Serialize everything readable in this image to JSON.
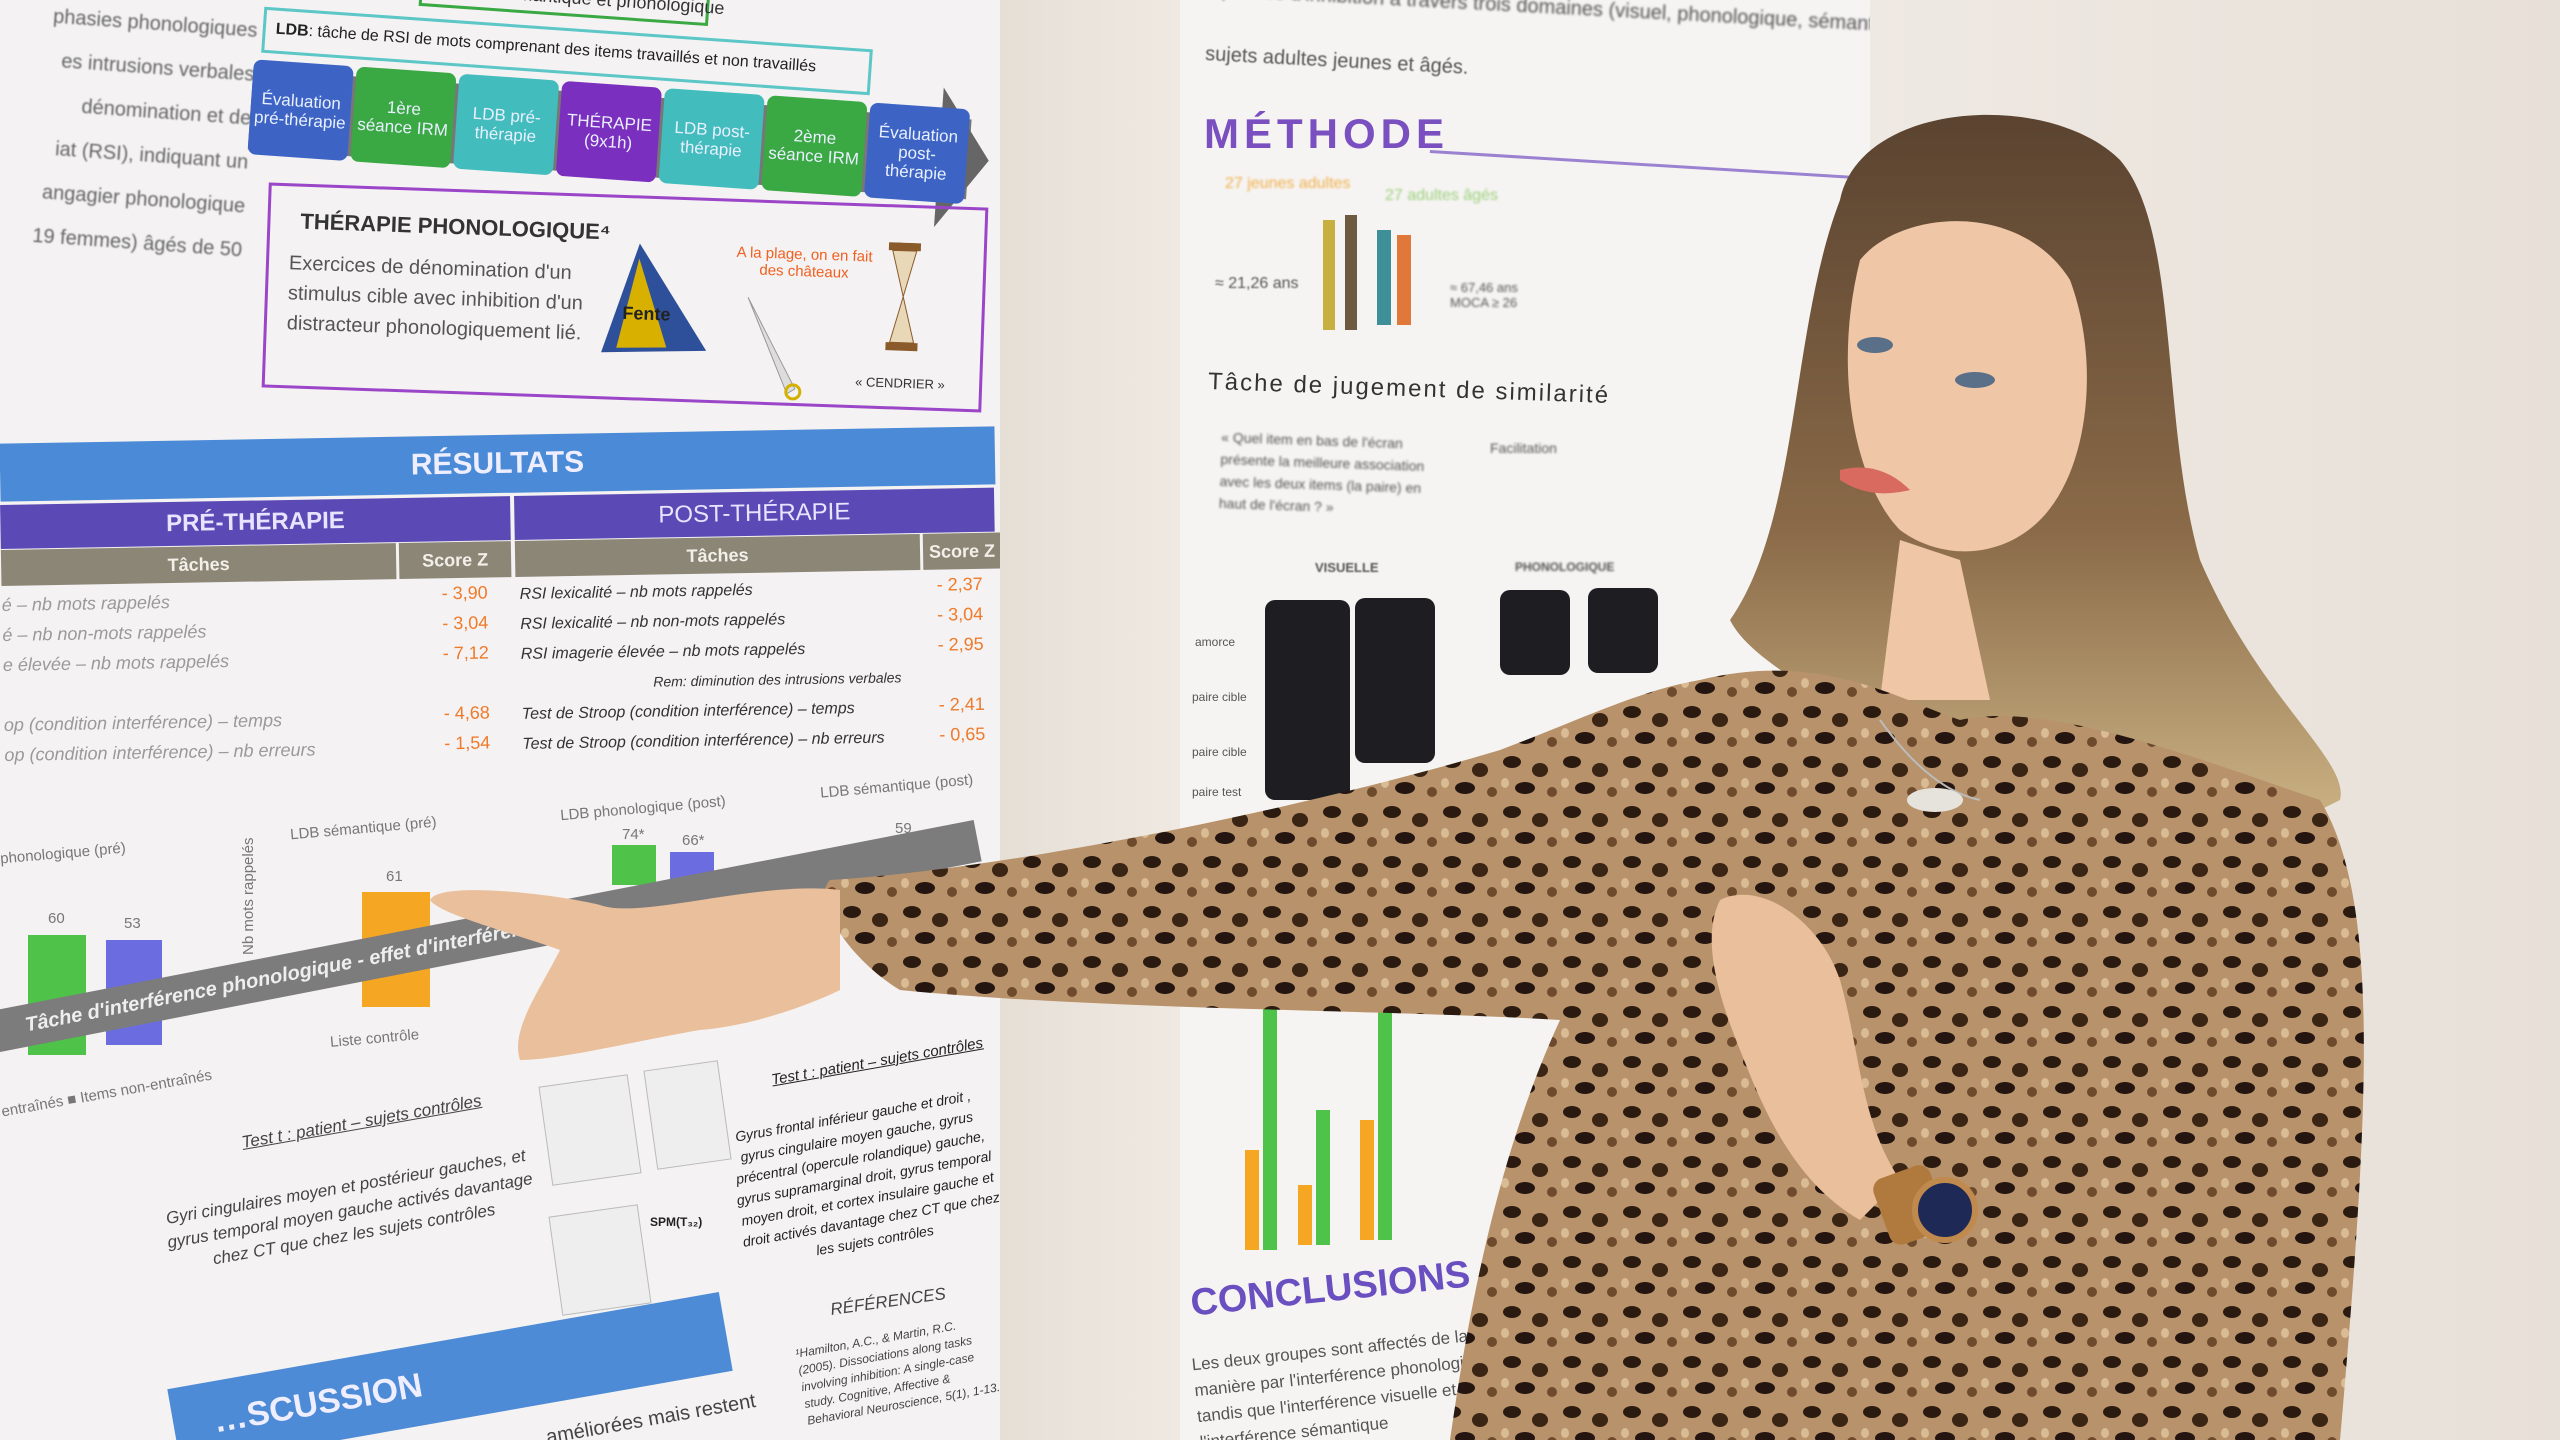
{
  "left_poster": {
    "intro_lines": [
      "phasies phonologiques",
      "es intrusions verbales",
      "dénomination et de",
      "iat (RSI), indiquant un",
      "angagier phonologique",
      "",
      "19 femmes) âgés de 50"
    ],
    "top_box": "…ence sémantique et phonologique",
    "ldb_box": {
      "bold": "LDB",
      "text": ": tâche de RSI de mots comprenant des items travaillés et non travaillés"
    },
    "timeline": [
      {
        "label": "Évaluation pré-thérapie",
        "color": "#3d63c4"
      },
      {
        "label": "1ère séance IRM",
        "color": "#3aa843"
      },
      {
        "label": "LDB pré-thérapie",
        "color": "#42bcbc"
      },
      {
        "label": "THÉRAPIE (9x1h)",
        "color": "#7b2fbe"
      },
      {
        "label": "LDB post-thérapie",
        "color": "#42bcbc"
      },
      {
        "label": "2ème séance IRM",
        "color": "#3aa843"
      },
      {
        "label": "Évaluation post-thérapie",
        "color": "#3d63c4"
      }
    ],
    "therapy": {
      "title": "THÉRAPIE PHONOLOGIQUE⁴",
      "text": "Exercices de dénomination d'un stimulus cible avec inhibition d'un distracteur phonologiquement lié.",
      "tent_word": "Fente",
      "distractor": "A la plage, on en fait des châteaux",
      "caption": "« CENDRIER »"
    },
    "results": {
      "title": "RÉSULTATS",
      "pre": {
        "title": "PRÉ-THÉRAPIE",
        "col_task": "Tâches",
        "col_score": "Score Z",
        "rows": [
          {
            "task": "é – nb mots rappelés",
            "score": "- 3,90"
          },
          {
            "task": "é – nb non-mots rappelés",
            "score": "- 3,04"
          },
          {
            "task": "e élevée – nb mots rappelés",
            "score": "- 7,12"
          },
          {
            "task": "op (condition interférence) – temps",
            "score": "- 4,68"
          },
          {
            "task": "op (condition interférence) – nb erreurs",
            "score": "- 1,54"
          }
        ]
      },
      "post": {
        "title": "POST-THÉRAPIE",
        "col_task": "Tâches",
        "col_score": "Score Z",
        "rows": [
          {
            "task": "RSI lexicalité – nb mots rappelés",
            "score": "- 2,37"
          },
          {
            "task": "RSI lexicalité – nb non-mots rappelés",
            "score": "- 3,04"
          },
          {
            "task": "RSI imagerie élevée – nb mots rappelés",
            "score": "- 2,95"
          },
          {
            "task": "Test de Stroop (condition interférence) – temps",
            "score": "- 2,41"
          },
          {
            "task": "Test de Stroop (condition interférence) – nb erreurs",
            "score": "- 0,65"
          }
        ],
        "rem": "Rem: diminution des intrusions verbales"
      },
      "charts": {
        "pre_phono": {
          "title": "phonologique (pré)",
          "values": [
            "60",
            "53"
          ]
        },
        "pre_sem": {
          "title": "LDB sémantique (pré)",
          "value": "61",
          "ylabel": "Nb mots rappelés",
          "legend": "Liste contrôle"
        },
        "post_phono": {
          "title": "LDB phonologique (post)",
          "values": [
            "74*",
            "66*"
          ]
        },
        "post_sem": {
          "title": "LDB sémantique (post)",
          "value": "59"
        },
        "legend": "entraînés ■ Items non-entraînés"
      }
    },
    "interference": {
      "band": "Tâche d'interférence phonologique - effet d'interférence",
      "left_title": "Test t : patient – sujets contrôles",
      "left_text": "Gyri cingulaires moyen et postérieur gauches, et gyrus temporal moyen gauche activés davantage chez CT que chez les sujets contrôles",
      "right_title": "Test t : patient – sujets contrôles",
      "right_text": "Gyrus frontal inférieur gauche et droit , gyrus cingulaire moyen gauche, gyrus précentral (opercule rolandique) gauche, gyrus supramarginal droit, gyrus temporal moyen droit, et cortex insulaire gauche et droit activés davantage chez CT que chez les sujets contrôles",
      "spm": "SPM(T₃₂)"
    },
    "discussion": {
      "title": "…SCUSSION",
      "text": "…améliorées mais restent"
    },
    "references": {
      "title": "RÉFÉRENCES",
      "text": "¹Hamilton, A.C., & Martin, R.C. (2005). Dissociations along tasks involving inhibition: A single-case study. Cognitive, Affective & Behavioral Neuroscience, 5(1), 1-13."
    }
  },
  "right_poster": {
    "intro": [
      "capacités d'inhibition à travers trois domaines (visuel, phonologique, sémantique) et ses sujets",
      "sujets adultes jeunes et âgés."
    ],
    "methode": "MÉTHODE",
    "young": "27 jeunes adultes",
    "old": "27 adultes âgés",
    "young_age": "≈ 21,26 ans",
    "old_age": "≈ 67,46 ans MOCA ≥ 26",
    "task_title": "Tâche de jugement de similarité",
    "question": "« Quel item en bas de l'écran présente la meilleure association avec les deux items (la paire) en haut de l'écran ? »",
    "visuelle": "VISUELLE",
    "phonologique": "PHONOLOGIQUE",
    "facilitation": "Facilitation",
    "row_labels": [
      "amorce",
      "paire cible",
      "paire cible",
      "paire test"
    ],
    "conclusions": "CONCLUSIONS",
    "conclusion_text": "Les deux groupes sont affectés de la même manière par l'interférence phonologique tandis que l'interférence visuelle et l'interférence sémantique"
  },
  "colors": {
    "results_blue": "#4b8ad6",
    "phase_purple": "#5b4ab5",
    "score_orange": "#f07a2a",
    "methode_purple": "#7a4fc0"
  }
}
